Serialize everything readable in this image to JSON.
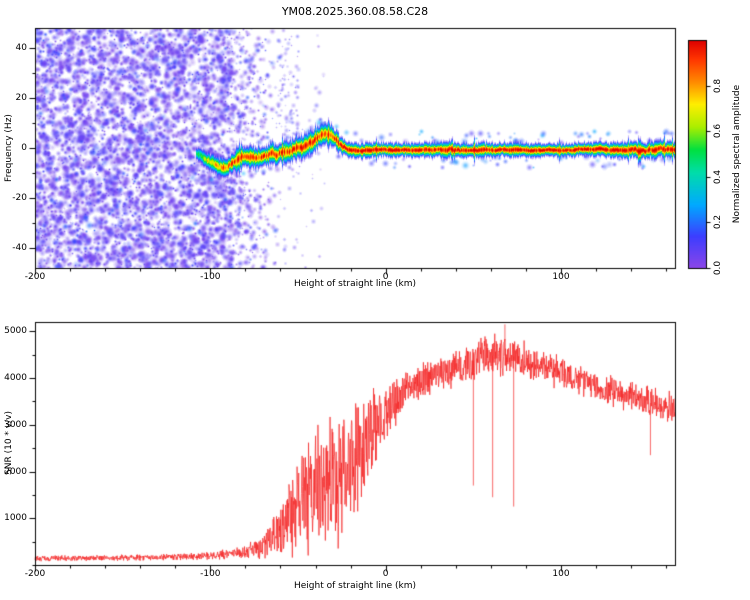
{
  "title": "YM08.2025.360.08.58.C28",
  "colors": {
    "axis": "#000000",
    "background": "#ffffff",
    "snr_line": "#f42525"
  },
  "colormap": [
    [
      0,
      "#8c46e8"
    ],
    [
      0.14,
      "#3d3dff"
    ],
    [
      0.28,
      "#00aaff"
    ],
    [
      0.42,
      "#00ddaa"
    ],
    [
      0.52,
      "#00e040"
    ],
    [
      0.62,
      "#aaee00"
    ],
    [
      0.72,
      "#ffee00"
    ],
    [
      0.82,
      "#ff8800"
    ],
    [
      0.92,
      "#ff3300"
    ],
    [
      1,
      "#dd0000"
    ]
  ],
  "chart_data": [
    {
      "type": "heatmap",
      "title": "YM08.2025.360.08.58.C28",
      "xlabel": "Height of straight line (km)",
      "ylabel": "Frequency (Hz)",
      "xlim": [
        -200,
        165
      ],
      "ylim": [
        -48,
        48
      ],
      "xticks": [
        -200,
        -100,
        0,
        100
      ],
      "xtick_minor": 20,
      "yticks": [
        40,
        20,
        0,
        -20,
        -40
      ],
      "ytick_minor": 10,
      "grid": false,
      "colorbar": {
        "label": "Normalized spectral amplitude",
        "ticks": [
          "0.0",
          "0.2",
          "0.4",
          "0.6",
          "0.8"
        ],
        "range": [
          0,
          1
        ],
        "position": "right"
      },
      "noise": {
        "x_full": [
          -200,
          -88
        ],
        "x_taper": [
          -88,
          -60
        ],
        "amp_range": [
          0.03,
          0.2
        ],
        "density": 0.09
      },
      "upper_patch": {
        "x": [
          -63,
          -50
        ],
        "f": [
          2,
          46
        ],
        "count": 80
      },
      "strays": {
        "x": [
          -60,
          -35
        ],
        "count": 60
      },
      "signal_trace": [
        [
          -108,
          -2,
          0.45,
          3
        ],
        [
          -102,
          -4,
          0.7,
          3.5
        ],
        [
          -97,
          -6,
          0.8,
          3.5
        ],
        [
          -92,
          -7,
          0.85,
          4
        ],
        [
          -87,
          -5,
          0.9,
          4
        ],
        [
          -82,
          -3,
          0.9,
          4
        ],
        [
          -77,
          -4,
          0.9,
          4.5
        ],
        [
          -72,
          -3,
          0.92,
          4.5
        ],
        [
          -67,
          -2,
          0.9,
          4
        ],
        [
          -62,
          -2,
          0.93,
          4.5
        ],
        [
          -57,
          -1,
          0.9,
          4.5
        ],
        [
          -52,
          0,
          0.92,
          4.5
        ],
        [
          -47,
          1,
          0.95,
          5
        ],
        [
          -42,
          3,
          0.95,
          5
        ],
        [
          -38,
          5,
          0.92,
          4.5
        ],
        [
          -34,
          6,
          0.9,
          4.5
        ],
        [
          -30,
          4,
          0.95,
          4
        ],
        [
          -26,
          2,
          0.97,
          3.5
        ],
        [
          -22,
          0,
          1,
          3.2
        ],
        [
          -15,
          -1,
          1,
          3
        ],
        [
          -5,
          -0.5,
          1,
          2.8
        ],
        [
          10,
          -0.5,
          1,
          2.7
        ],
        [
          40,
          -0.5,
          1,
          3.3
        ],
        [
          60,
          -0.5,
          1,
          2.8
        ],
        [
          90,
          -0.5,
          1,
          2.7
        ],
        [
          120,
          -0.5,
          1,
          2.7
        ],
        [
          140,
          -0.5,
          1,
          3.2
        ],
        [
          155,
          -0.5,
          1,
          3.4
        ],
        [
          165,
          -0.5,
          1,
          3
        ]
      ]
    },
    {
      "type": "line",
      "xlabel": "Height of straight line (km)",
      "ylabel": "SNR (10 * v/v)",
      "xlim": [
        -200,
        165
      ],
      "ylim": [
        0,
        5200
      ],
      "xticks": [
        -200,
        -100,
        0,
        100
      ],
      "xtick_minor": 20,
      "yticks": [
        1000,
        2000,
        3000,
        4000,
        5000
      ],
      "ytick_minor": 500,
      "grid": false,
      "envelope": [
        [
          -200,
          140,
          70
        ],
        [
          -160,
          150,
          70
        ],
        [
          -130,
          160,
          80
        ],
        [
          -105,
          190,
          90
        ],
        [
          -90,
          230,
          120
        ],
        [
          -80,
          280,
          170
        ],
        [
          -72,
          370,
          280
        ],
        [
          -65,
          540,
          440
        ],
        [
          -58,
          850,
          720
        ],
        [
          -52,
          1150,
          1020
        ],
        [
          -46,
          1400,
          1300
        ],
        [
          -40,
          1600,
          1500
        ],
        [
          -33,
          1700,
          1550
        ],
        [
          -27,
          1900,
          1550
        ],
        [
          -20,
          2200,
          1450
        ],
        [
          -12,
          2600,
          1250
        ],
        [
          -5,
          3000,
          950
        ],
        [
          0,
          3300,
          750
        ],
        [
          8,
          3600,
          560
        ],
        [
          20,
          3900,
          500
        ],
        [
          32,
          4100,
          450
        ],
        [
          45,
          4300,
          450
        ],
        [
          55,
          4450,
          460
        ],
        [
          65,
          4500,
          480
        ],
        [
          75,
          4450,
          450
        ],
        [
          90,
          4250,
          410
        ],
        [
          105,
          4050,
          380
        ],
        [
          120,
          3850,
          360
        ],
        [
          135,
          3650,
          360
        ],
        [
          150,
          3480,
          380
        ],
        [
          165,
          3320,
          380
        ]
      ],
      "spikes": [
        [
          50,
          1700
        ],
        [
          61,
          1450
        ],
        [
          68,
          5150
        ],
        [
          73,
          1250
        ],
        [
          151,
          2350
        ]
      ]
    }
  ]
}
